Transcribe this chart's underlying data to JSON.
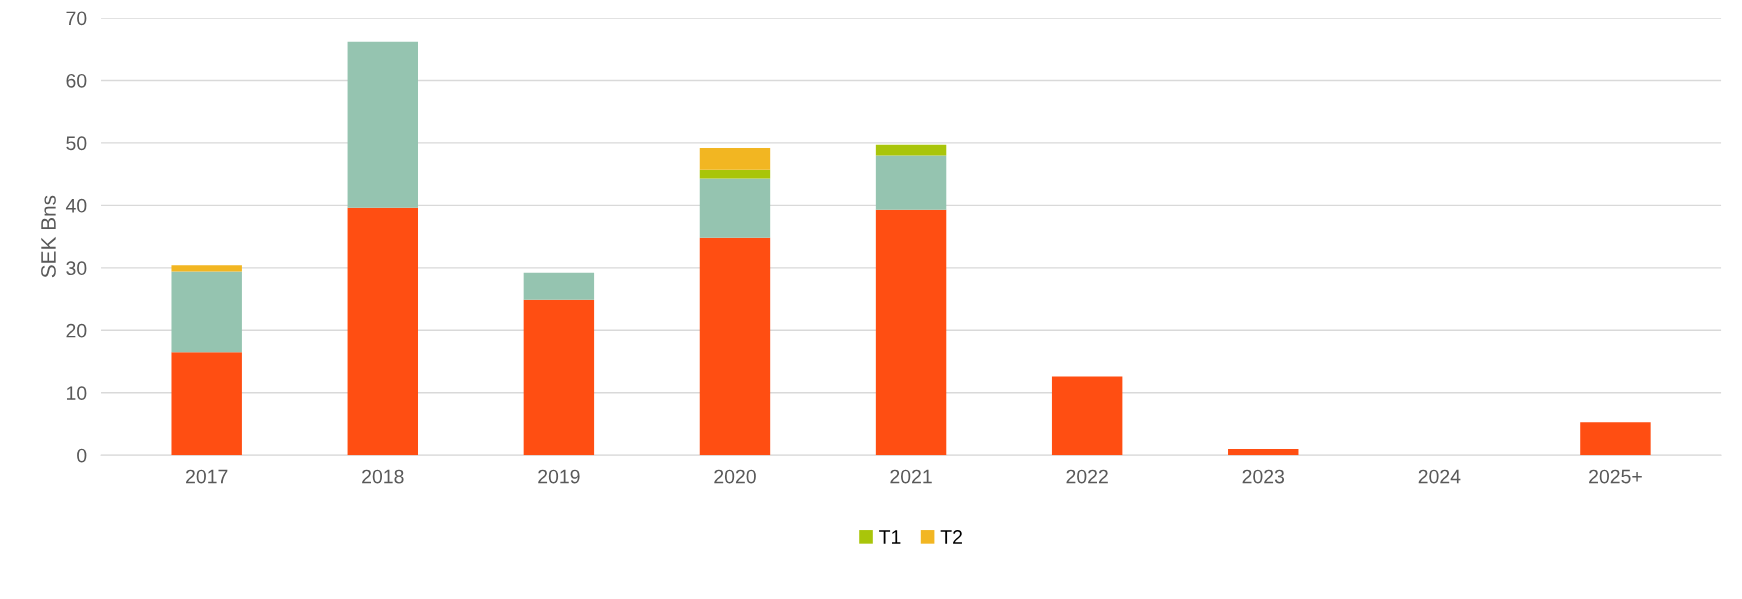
{
  "chart_data": {
    "type": "bar",
    "stacked": true,
    "ylabel": "SEK Bns",
    "categories": [
      "2017",
      "2018",
      "2019",
      "2020",
      "2021",
      "2022",
      "2023",
      "2024",
      "2025+"
    ],
    "series": [
      {
        "color": "#ff4e12",
        "values": [
          16.5,
          39.6,
          24.9,
          34.8,
          39.3,
          12.6,
          1.0,
          0,
          5.3
        ]
      },
      {
        "color": "#95c4b0",
        "values": [
          12.9,
          26.6,
          4.3,
          9.5,
          8.7,
          0,
          0,
          0,
          0
        ]
      },
      {
        "name": "T1",
        "color": "#a9c50a",
        "values": [
          0,
          0,
          0,
          1.4,
          1.7,
          0,
          0,
          0,
          0
        ]
      },
      {
        "name": "T2",
        "color": "#f2b622",
        "values": [
          1.0,
          0,
          0,
          3.5,
          0,
          0,
          0,
          0,
          0
        ]
      }
    ],
    "ylim": [
      0,
      70
    ],
    "yticks": [
      0,
      10,
      20,
      30,
      40,
      50,
      60,
      70
    ],
    "grid": "y",
    "legend": "bottom"
  }
}
